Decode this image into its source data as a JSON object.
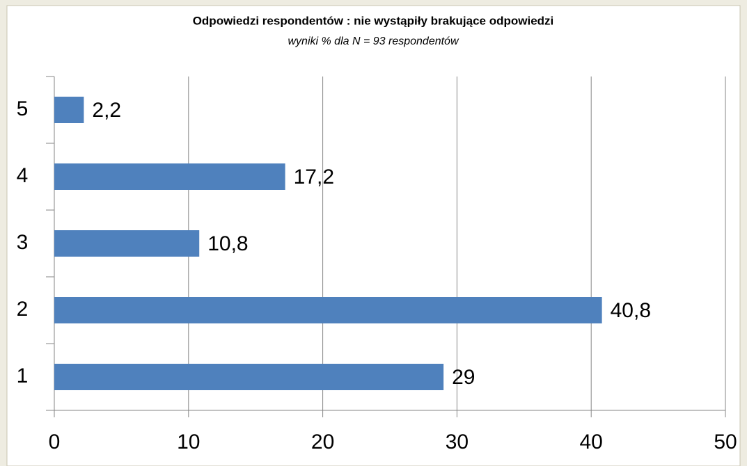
{
  "chart_data": {
    "type": "bar",
    "orientation": "horizontal",
    "title": "Odpowiedzi  respondentów : nie wystąpiły brakujące odpowiedzi",
    "subtitle": "wyniki % dla N = 93 respondentów",
    "categories": [
      "1",
      "2",
      "3",
      "4",
      "5"
    ],
    "values": [
      29,
      40.8,
      10.8,
      17.2,
      2.2
    ],
    "value_labels": [
      "29",
      "40,8",
      "10,8",
      "17,2",
      "2,2"
    ],
    "color": "#4f81bd",
    "xlim": [
      0,
      50
    ],
    "xticks": [
      0,
      10,
      20,
      30,
      40,
      50
    ],
    "grid": true
  }
}
